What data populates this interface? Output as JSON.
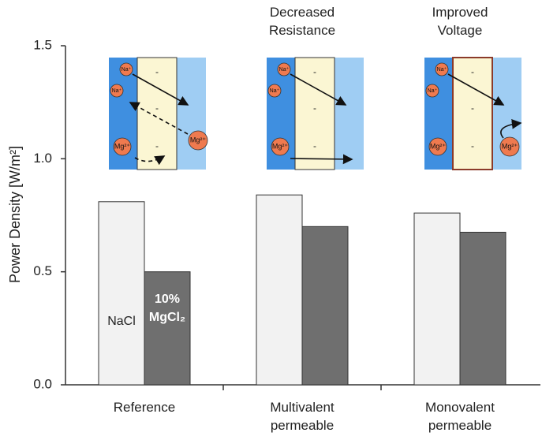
{
  "chart_data": {
    "type": "bar",
    "y_label": "Power Density [W/m²]",
    "categories": [
      "Reference",
      "Multivalent\npermeable",
      "Monovalent\npermeable"
    ],
    "annotations": [
      null,
      "Decreased\nResistance",
      "Improved\nVoltage"
    ],
    "series": [
      {
        "name": "NaCl",
        "color": "#f2f2f2",
        "values": [
          0.81,
          0.84,
          0.76
        ]
      },
      {
        "name": "10%\nMgCl₂",
        "color": "#6f6f6f",
        "values": [
          0.5,
          0.7,
          0.675
        ]
      }
    ],
    "ylim": [
      0,
      1.5
    ],
    "yticks": [
      {
        "value": 0,
        "label": "0.0"
      },
      0.5,
      {
        "value": 1,
        "label": "1.0"
      },
      1.5
    ],
    "inset_labels": {
      "sodium": "Na⁺",
      "magnesium": "Mg²⁺",
      "fixed_charge": "-"
    }
  }
}
